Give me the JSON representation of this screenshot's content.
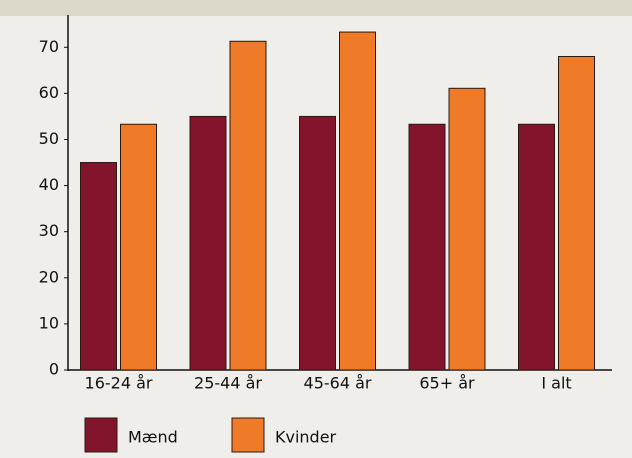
{
  "chart_data": {
    "type": "bar",
    "categories": [
      "16-24 år",
      "25-44 år",
      "45-64 år",
      "65+ år",
      "I alt"
    ],
    "series": [
      {
        "name": "Mænd",
        "color": "#82152b",
        "values": [
          45,
          55,
          55,
          53.3,
          53.3
        ]
      },
      {
        "name": "Kvinder",
        "color": "#ef7a27",
        "values": [
          53.3,
          71.3,
          73.3,
          61.1,
          68
        ]
      }
    ],
    "ylim": [
      0,
      77
    ],
    "yticks": [
      0,
      10,
      20,
      30,
      40,
      50,
      60,
      70
    ]
  }
}
